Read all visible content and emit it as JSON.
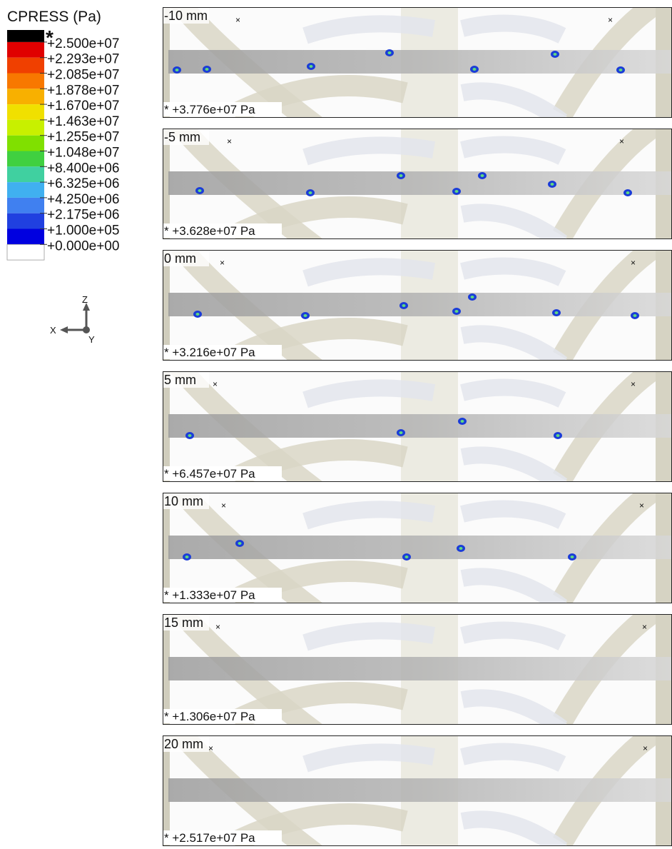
{
  "legend": {
    "title": "CPRESS (Pa)",
    "star": "*",
    "levels": [
      "+2.500e+07",
      "+2.293e+07",
      "+2.085e+07",
      "+1.878e+07",
      "+1.670e+07",
      "+1.463e+07",
      "+1.255e+07",
      "+1.048e+07",
      "+8.400e+06",
      "+6.325e+06",
      "+4.250e+06",
      "+2.175e+06",
      "+1.000e+05",
      "+0.000e+00"
    ]
  },
  "axes": {
    "z": "Z",
    "x": "X",
    "y": "Y"
  },
  "panels": [
    {
      "label": "-10 mm",
      "max": "* +3.776e+07 Pa"
    },
    {
      "label": "-5 mm",
      "max": "* +3.628e+07 Pa"
    },
    {
      "label": "0 mm",
      "max": "* +3.216e+07 Pa"
    },
    {
      "label": "5 mm",
      "max": "* +6.457e+07 Pa"
    },
    {
      "label": "10 mm",
      "max": "* +1.333e+07 Pa"
    },
    {
      "label": "15 mm",
      "max": "* +1.306e+07 Pa"
    },
    {
      "label": "20 mm",
      "max": "* +2.517e+07 Pa"
    }
  ]
}
